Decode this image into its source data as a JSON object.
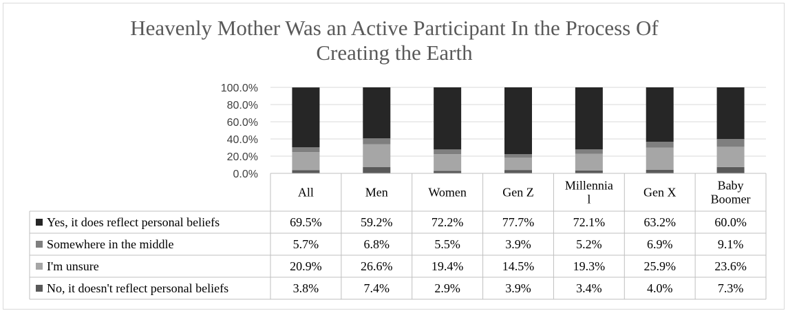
{
  "chart_data": {
    "type": "bar",
    "stacked": true,
    "title": "Heavenly Mother Was an Active Participant In the Process Of Creating the Earth",
    "title_lines": [
      "Heavenly Mother Was an Active Participant In the Process Of",
      "Creating the Earth"
    ],
    "categories": [
      "All",
      "Men",
      "Women",
      "Gen Z",
      "Millennial",
      "Gen X",
      "Baby Boomer"
    ],
    "category_labels": [
      [
        "All"
      ],
      [
        "Men"
      ],
      [
        "Women"
      ],
      [
        "Gen Z"
      ],
      [
        "Millennia",
        "l"
      ],
      [
        "Gen X"
      ],
      [
        "Baby",
        "Boomer"
      ]
    ],
    "ylim": [
      0,
      100
    ],
    "yticks": [
      0,
      20,
      40,
      60,
      80,
      100
    ],
    "ytick_labels": [
      "0.0%",
      "20.0%",
      "40.0%",
      "60.0%",
      "80.0%",
      "100.0%"
    ],
    "grid": true,
    "data_table": true,
    "series": [
      {
        "name": "No, it doesn't reflect personal beliefs",
        "color": "#595959",
        "values": [
          3.8,
          7.4,
          2.9,
          3.9,
          3.4,
          4.0,
          7.3
        ],
        "labels": [
          "3.8%",
          "7.4%",
          "2.9%",
          "3.9%",
          "3.4%",
          "4.0%",
          "7.3%"
        ]
      },
      {
        "name": "I'm unsure",
        "color": "#a6a6a6",
        "values": [
          20.9,
          26.6,
          19.4,
          14.5,
          19.3,
          25.9,
          23.6
        ],
        "labels": [
          "20.9%",
          "26.6%",
          "19.4%",
          "14.5%",
          "19.3%",
          "25.9%",
          "23.6%"
        ]
      },
      {
        "name": "Somewhere in the middle",
        "color": "#7f7f7f",
        "values": [
          5.7,
          6.8,
          5.5,
          3.9,
          5.2,
          6.9,
          9.1
        ],
        "labels": [
          "5.7%",
          "6.8%",
          "5.5%",
          "3.9%",
          "5.2%",
          "6.9%",
          "9.1%"
        ]
      },
      {
        "name": "Yes, it does reflect personal beliefs",
        "color": "#262626",
        "values": [
          69.5,
          59.2,
          72.2,
          77.7,
          72.1,
          63.2,
          60.0
        ],
        "labels": [
          "69.5%",
          "59.2%",
          "72.2%",
          "77.7%",
          "72.1%",
          "63.2%",
          "60.0%"
        ]
      }
    ],
    "table_row_order": [
      3,
      2,
      1,
      0
    ]
  }
}
